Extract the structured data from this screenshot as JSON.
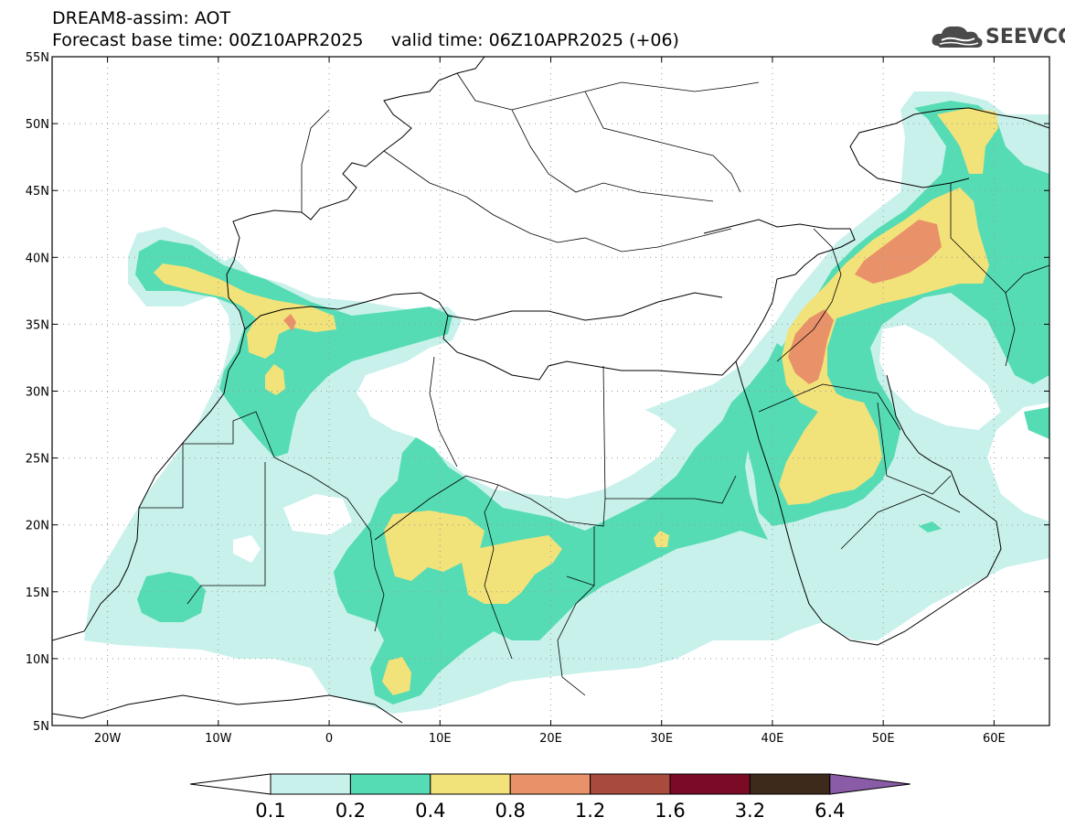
{
  "header": {
    "title_line1": "DREAM8-assim: AOT",
    "title_line2": "Forecast base time: 00Z10APR2025     valid time: 06Z10APR2025 (+06)",
    "logo_text": "SEEVCCC"
  },
  "map": {
    "lon_range": [
      -25,
      65
    ],
    "lat_range": [
      5,
      55
    ],
    "lon_ticks": [
      {
        "lon": -20,
        "label": "20W"
      },
      {
        "lon": -10,
        "label": "10W"
      },
      {
        "lon": 0,
        "label": "0"
      },
      {
        "lon": 10,
        "label": "10E"
      },
      {
        "lon": 20,
        "label": "20E"
      },
      {
        "lon": 30,
        "label": "30E"
      },
      {
        "lon": 40,
        "label": "40E"
      },
      {
        "lon": 50,
        "label": "50E"
      },
      {
        "lon": 60,
        "label": "60E"
      }
    ],
    "lat_ticks": [
      {
        "lat": 55,
        "label": "55N"
      },
      {
        "lat": 50,
        "label": "50N"
      },
      {
        "lat": 45,
        "label": "45N"
      },
      {
        "lat": 40,
        "label": "40N"
      },
      {
        "lat": 35,
        "label": "35N"
      },
      {
        "lat": 30,
        "label": "30N"
      },
      {
        "lat": 25,
        "label": "25N"
      },
      {
        "lat": 20,
        "label": "20N"
      },
      {
        "lat": 15,
        "label": "15N"
      },
      {
        "lat": 10,
        "label": "10N"
      },
      {
        "lat": 5,
        "label": "5N"
      }
    ],
    "grid": "dotted",
    "colors": {
      "c01": "#c8f1ec",
      "c02": "#56dcb4",
      "c04": "#f2e27a",
      "c08": "#e9926a",
      "c12": "#c25a4a"
    }
  },
  "colorbar": {
    "labels": [
      "0.1",
      "0.2",
      "0.4",
      "0.8",
      "1.2",
      "1.6",
      "3.2",
      "6.4"
    ],
    "colors": [
      "#c8f1ec",
      "#56dcb4",
      "#f2e27a",
      "#e9926a",
      "#a84a3c",
      "#7a0a26",
      "#3d2a1a"
    ],
    "under_color": "#ffffff",
    "over_color": "#8a5ca8"
  }
}
